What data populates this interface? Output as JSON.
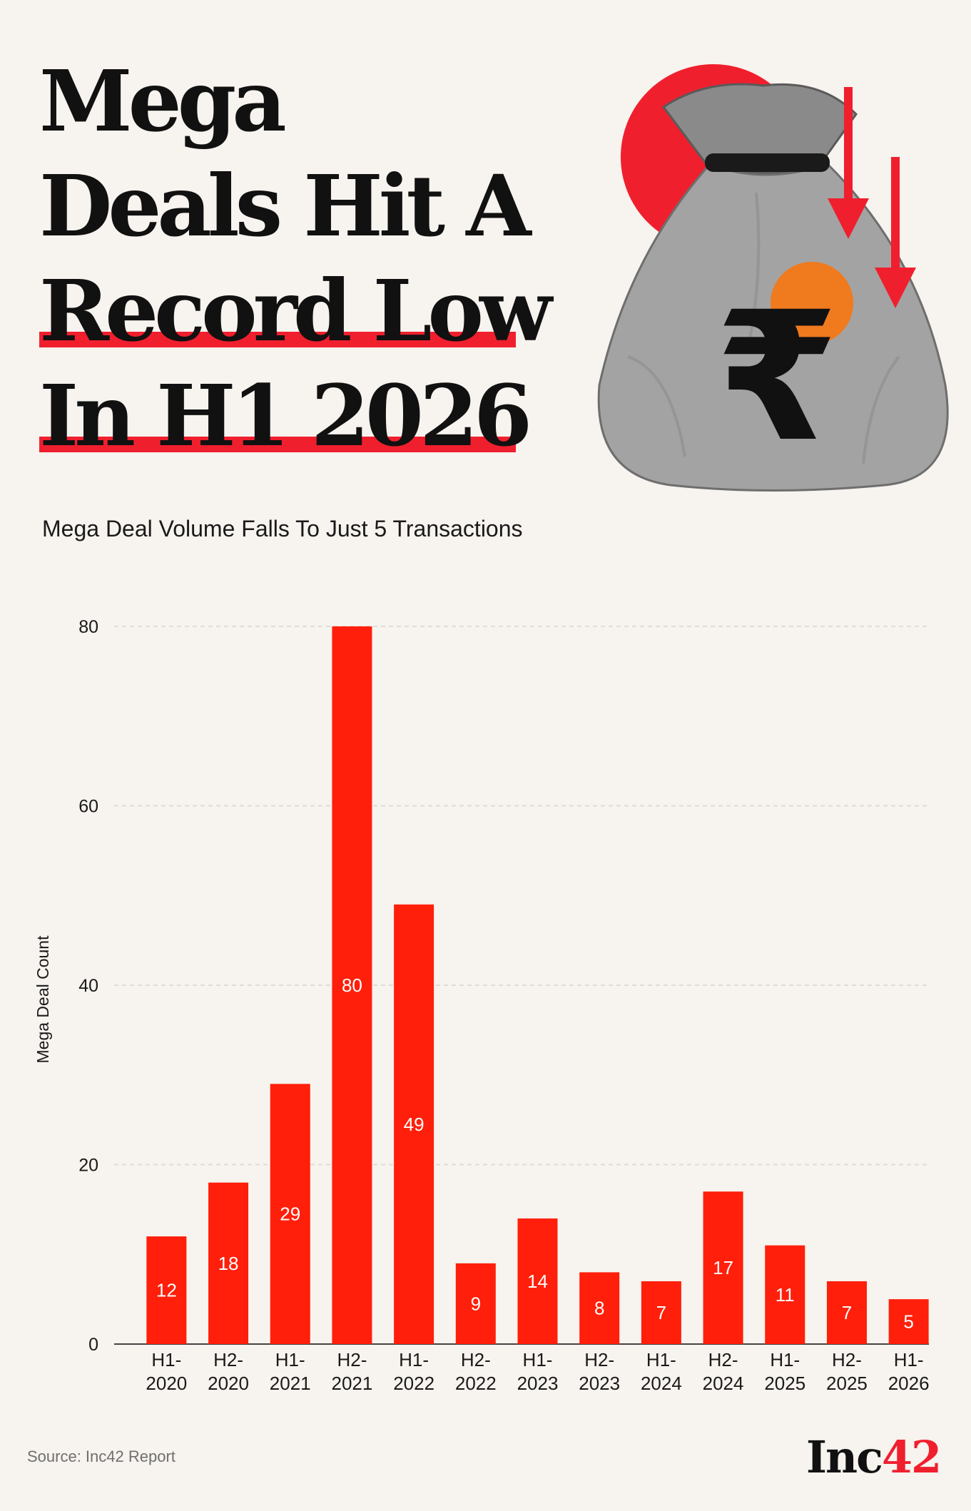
{
  "title": {
    "line1": "Mega",
    "line2": "Deals Hit A",
    "line3": "Record Low",
    "line4": "In H1 2026"
  },
  "colors": {
    "background": "#f7f3ee",
    "bar": "#ff1f0a",
    "accent": "#f01f2e",
    "text": "#111111"
  },
  "illustration": {
    "icon": "rupee-money-bag-icon",
    "currency_symbol": "₹"
  },
  "chart_data": {
    "type": "bar",
    "title": "Mega Deal Volume Falls To Just 5 Transactions",
    "xlabel": "",
    "ylabel": "Mega Deal Count",
    "categories": [
      [
        "H1-",
        "2020"
      ],
      [
        "H2-",
        "2020"
      ],
      [
        "H1-",
        "2021"
      ],
      [
        "H2-",
        "2021"
      ],
      [
        "H1-",
        "2022"
      ],
      [
        "H2-",
        "2022"
      ],
      [
        "H1-",
        "2023"
      ],
      [
        "H2-",
        "2023"
      ],
      [
        "H1-",
        "2024"
      ],
      [
        "H2-",
        "2024"
      ],
      [
        "H1-",
        "2025"
      ],
      [
        "H2-",
        "2025"
      ],
      [
        "H1-",
        "2026"
      ]
    ],
    "values": [
      12,
      18,
      29,
      80,
      49,
      9,
      14,
      8,
      7,
      17,
      11,
      7,
      5
    ],
    "yticks": [
      0,
      20,
      40,
      60,
      80
    ],
    "ylim": [
      0,
      80
    ],
    "grid": "horizontal dashed",
    "data_labels": true
  },
  "source": "Source: Inc42 Report",
  "logo": {
    "text": "Inc",
    "num": "42"
  }
}
